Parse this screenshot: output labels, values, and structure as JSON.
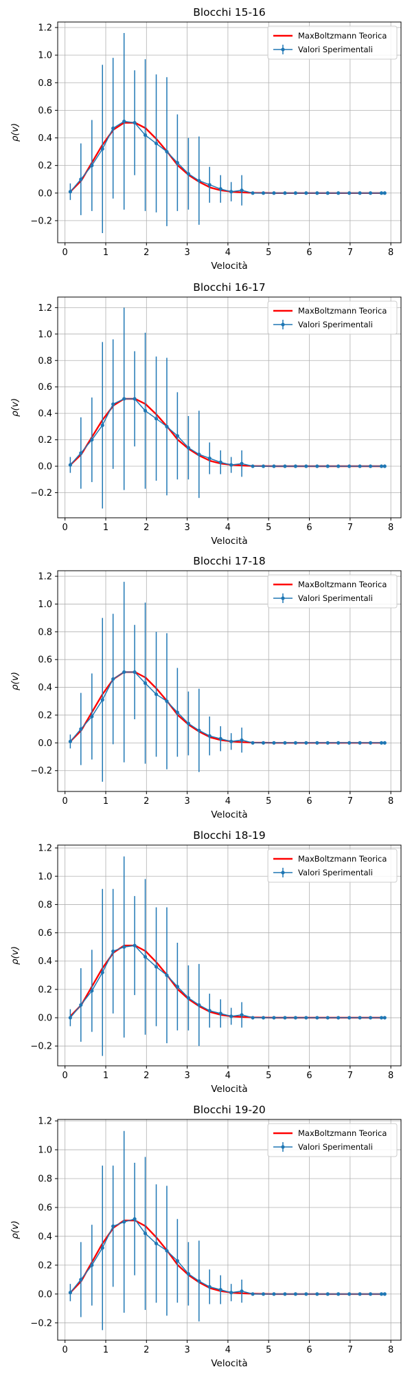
{
  "chart_data": [
    {
      "type": "line",
      "title": "Blocchi 15-16",
      "xlabel": "Velocità",
      "ylabel": "ρ(v)",
      "xlim": [
        -0.18,
        8.25
      ],
      "ylim": [
        -0.36,
        1.24
      ],
      "xticks": [
        0,
        1,
        2,
        3,
        4,
        5,
        6,
        7,
        8
      ],
      "yticks": [
        -0.2,
        0.0,
        0.2,
        0.4,
        0.6,
        0.8,
        1.0,
        1.2
      ],
      "xtick_labels": [
        "0",
        "1",
        "2",
        "3",
        "4",
        "5",
        "6",
        "7",
        "8"
      ],
      "ytick_labels": [
        "−0.2",
        "0.0",
        "0.2",
        "0.4",
        "0.6",
        "0.8",
        "1.0",
        "1.2"
      ],
      "grid": true,
      "legend_position": "top-right",
      "series": [
        {
          "name": "MaxBoltzmann Teorica",
          "color": "#ff0000",
          "kind": "line",
          "x": [
            0.13,
            0.4,
            0.66,
            0.92,
            1.19,
            1.45,
            1.72,
            1.98,
            2.25,
            2.51,
            2.77,
            3.04,
            3.3,
            3.57,
            3.83,
            4.1,
            4.36,
            4.62,
            4.89,
            5.15,
            5.42,
            5.68,
            5.95,
            6.21,
            6.47,
            6.74,
            7.0,
            7.27,
            7.53,
            7.8,
            7.85
          ],
          "y": [
            0.01,
            0.09,
            0.22,
            0.35,
            0.46,
            0.51,
            0.51,
            0.47,
            0.39,
            0.3,
            0.2,
            0.13,
            0.08,
            0.04,
            0.02,
            0.01,
            0.005,
            0.002,
            0.001,
            0,
            0,
            0,
            0,
            0,
            0,
            0,
            0,
            0,
            0,
            0,
            0
          ]
        },
        {
          "name": "Valori Sperimentali",
          "color": "#1f77b4",
          "kind": "errorbar",
          "x": [
            0.13,
            0.39,
            0.66,
            0.92,
            1.18,
            1.45,
            1.71,
            1.97,
            2.24,
            2.5,
            2.76,
            3.03,
            3.29,
            3.55,
            3.82,
            4.08,
            4.34,
            4.61,
            4.87,
            5.13,
            5.4,
            5.66,
            5.92,
            6.19,
            6.45,
            6.71,
            6.98,
            7.24,
            7.5,
            7.77,
            7.85
          ],
          "y": [
            0.01,
            0.1,
            0.2,
            0.32,
            0.47,
            0.52,
            0.51,
            0.42,
            0.36,
            0.3,
            0.22,
            0.14,
            0.09,
            0.06,
            0.03,
            0.01,
            0.02,
            0,
            0,
            0,
            0,
            0,
            0,
            0,
            0,
            0,
            0,
            0,
            0,
            0,
            0
          ],
          "err": [
            0.06,
            0.26,
            0.33,
            0.61,
            0.51,
            0.64,
            0.38,
            0.55,
            0.5,
            0.54,
            0.35,
            0.26,
            0.32,
            0.13,
            0.1,
            0.07,
            0.11,
            0,
            0,
            0,
            0,
            0,
            0,
            0,
            0,
            0,
            0,
            0,
            0,
            0,
            0
          ]
        }
      ]
    },
    {
      "type": "line",
      "title": "Blocchi 16-17",
      "xlabel": "Velocità",
      "ylabel": "ρ(v)",
      "xlim": [
        -0.18,
        8.25
      ],
      "ylim": [
        -0.39,
        1.28
      ],
      "xticks": [
        0,
        1,
        2,
        3,
        4,
        5,
        6,
        7,
        8
      ],
      "yticks": [
        -0.2,
        0.0,
        0.2,
        0.4,
        0.6,
        0.8,
        1.0,
        1.2
      ],
      "xtick_labels": [
        "0",
        "1",
        "2",
        "3",
        "4",
        "5",
        "6",
        "7",
        "8"
      ],
      "ytick_labels": [
        "−0.2",
        "0.0",
        "0.2",
        "0.4",
        "0.6",
        "0.8",
        "1.0",
        "1.2"
      ],
      "grid": true,
      "legend_position": "top-right",
      "series": [
        {
          "name": "MaxBoltzmann Teorica",
          "color": "#ff0000",
          "kind": "line",
          "x": [
            0.13,
            0.4,
            0.66,
            0.92,
            1.19,
            1.45,
            1.72,
            1.98,
            2.25,
            2.51,
            2.77,
            3.04,
            3.3,
            3.57,
            3.83,
            4.1,
            4.36,
            4.62,
            4.89,
            5.15,
            5.42,
            5.68,
            5.95,
            6.21,
            6.47,
            6.74,
            7.0,
            7.27,
            7.53,
            7.8,
            7.85
          ],
          "y": [
            0.01,
            0.09,
            0.22,
            0.35,
            0.46,
            0.51,
            0.51,
            0.47,
            0.39,
            0.3,
            0.2,
            0.13,
            0.08,
            0.04,
            0.02,
            0.01,
            0.005,
            0.002,
            0.001,
            0,
            0,
            0,
            0,
            0,
            0,
            0,
            0,
            0,
            0,
            0,
            0
          ]
        },
        {
          "name": "Valori Sperimentali",
          "color": "#1f77b4",
          "kind": "errorbar",
          "x": [
            0.13,
            0.39,
            0.66,
            0.92,
            1.18,
            1.45,
            1.71,
            1.97,
            2.24,
            2.5,
            2.76,
            3.03,
            3.29,
            3.55,
            3.82,
            4.08,
            4.34,
            4.61,
            4.87,
            5.13,
            5.4,
            5.66,
            5.92,
            6.19,
            6.45,
            6.71,
            6.98,
            7.24,
            7.5,
            7.77,
            7.85
          ],
          "y": [
            0.01,
            0.1,
            0.2,
            0.31,
            0.47,
            0.51,
            0.51,
            0.42,
            0.36,
            0.3,
            0.23,
            0.14,
            0.09,
            0.06,
            0.03,
            0.01,
            0.02,
            0,
            0,
            0,
            0,
            0,
            0,
            0,
            0,
            0,
            0,
            0,
            0,
            0,
            0
          ],
          "err": [
            0.06,
            0.27,
            0.32,
            0.63,
            0.49,
            0.69,
            0.36,
            0.59,
            0.47,
            0.52,
            0.33,
            0.24,
            0.33,
            0.12,
            0.09,
            0.06,
            0.1,
            0,
            0,
            0,
            0,
            0,
            0,
            0,
            0,
            0,
            0,
            0,
            0,
            0,
            0
          ]
        }
      ]
    },
    {
      "type": "line",
      "title": "Blocchi 17-18",
      "xlabel": "Velocità",
      "ylabel": "ρ(v)",
      "xlim": [
        -0.18,
        8.25
      ],
      "ylim": [
        -0.35,
        1.24
      ],
      "xticks": [
        0,
        1,
        2,
        3,
        4,
        5,
        6,
        7,
        8
      ],
      "yticks": [
        -0.2,
        0.0,
        0.2,
        0.4,
        0.6,
        0.8,
        1.0,
        1.2
      ],
      "xtick_labels": [
        "0",
        "1",
        "2",
        "3",
        "4",
        "5",
        "6",
        "7",
        "8"
      ],
      "ytick_labels": [
        "−0.2",
        "0.0",
        "0.2",
        "0.4",
        "0.6",
        "0.8",
        "1.0",
        "1.2"
      ],
      "grid": true,
      "legend_position": "top-right",
      "series": [
        {
          "name": "MaxBoltzmann Teorica",
          "color": "#ff0000",
          "kind": "line",
          "x": [
            0.13,
            0.4,
            0.66,
            0.92,
            1.19,
            1.45,
            1.72,
            1.98,
            2.25,
            2.51,
            2.77,
            3.04,
            3.3,
            3.57,
            3.83,
            4.1,
            4.36,
            4.62,
            4.89,
            5.15,
            5.42,
            5.68,
            5.95,
            6.21,
            6.47,
            6.74,
            7.0,
            7.27,
            7.53,
            7.8,
            7.85
          ],
          "y": [
            0.01,
            0.09,
            0.22,
            0.35,
            0.46,
            0.51,
            0.51,
            0.47,
            0.39,
            0.3,
            0.2,
            0.13,
            0.08,
            0.04,
            0.02,
            0.01,
            0.005,
            0.002,
            0.001,
            0,
            0,
            0,
            0,
            0,
            0,
            0,
            0,
            0,
            0,
            0,
            0
          ]
        },
        {
          "name": "Valori Sperimentali",
          "color": "#1f77b4",
          "kind": "errorbar",
          "x": [
            0.13,
            0.39,
            0.66,
            0.92,
            1.18,
            1.45,
            1.71,
            1.97,
            2.24,
            2.5,
            2.76,
            3.03,
            3.29,
            3.55,
            3.82,
            4.08,
            4.34,
            4.61,
            4.87,
            5.13,
            5.4,
            5.66,
            5.92,
            6.19,
            6.45,
            6.71,
            6.98,
            7.24,
            7.5,
            7.77,
            7.85
          ],
          "y": [
            0.01,
            0.1,
            0.19,
            0.31,
            0.46,
            0.51,
            0.51,
            0.43,
            0.35,
            0.3,
            0.22,
            0.14,
            0.09,
            0.05,
            0.03,
            0.01,
            0.02,
            0,
            0,
            0,
            0,
            0,
            0,
            0,
            0,
            0,
            0,
            0,
            0,
            0,
            0
          ],
          "err": [
            0.05,
            0.26,
            0.31,
            0.59,
            0.47,
            0.65,
            0.34,
            0.58,
            0.45,
            0.49,
            0.32,
            0.23,
            0.3,
            0.14,
            0.09,
            0.06,
            0.09,
            0,
            0,
            0,
            0,
            0,
            0,
            0,
            0,
            0,
            0,
            0,
            0,
            0,
            0
          ]
        }
      ]
    },
    {
      "type": "line",
      "title": "Blocchi 18-19",
      "xlabel": "Velocità",
      "ylabel": "ρ(v)",
      "xlim": [
        -0.18,
        8.25
      ],
      "ylim": [
        -0.34,
        1.22
      ],
      "xticks": [
        0,
        1,
        2,
        3,
        4,
        5,
        6,
        7,
        8
      ],
      "yticks": [
        -0.2,
        0.0,
        0.2,
        0.4,
        0.6,
        0.8,
        1.0,
        1.2
      ],
      "xtick_labels": [
        "0",
        "1",
        "2",
        "3",
        "4",
        "5",
        "6",
        "7",
        "8"
      ],
      "ytick_labels": [
        "−0.2",
        "0.0",
        "0.2",
        "0.4",
        "0.6",
        "0.8",
        "1.0",
        "1.2"
      ],
      "grid": true,
      "legend_position": "top-right",
      "series": [
        {
          "name": "MaxBoltzmann Teorica",
          "color": "#ff0000",
          "kind": "line",
          "x": [
            0.13,
            0.4,
            0.66,
            0.92,
            1.19,
            1.45,
            1.72,
            1.98,
            2.25,
            2.51,
            2.77,
            3.04,
            3.3,
            3.57,
            3.83,
            4.1,
            4.36,
            4.62,
            4.89,
            5.15,
            5.42,
            5.68,
            5.95,
            6.21,
            6.47,
            6.74,
            7.0,
            7.27,
            7.53,
            7.8,
            7.85
          ],
          "y": [
            0.01,
            0.09,
            0.22,
            0.35,
            0.46,
            0.51,
            0.51,
            0.47,
            0.39,
            0.3,
            0.2,
            0.13,
            0.08,
            0.04,
            0.02,
            0.01,
            0.005,
            0.002,
            0.001,
            0,
            0,
            0,
            0,
            0,
            0,
            0,
            0,
            0,
            0,
            0,
            0
          ]
        },
        {
          "name": "Valori Sperimentali",
          "color": "#1f77b4",
          "kind": "errorbar",
          "x": [
            0.13,
            0.39,
            0.66,
            0.92,
            1.18,
            1.45,
            1.71,
            1.97,
            2.24,
            2.5,
            2.76,
            3.03,
            3.29,
            3.55,
            3.82,
            4.08,
            4.34,
            4.61,
            4.87,
            5.13,
            5.4,
            5.66,
            5.92,
            6.19,
            6.45,
            6.71,
            6.98,
            7.24,
            7.5,
            7.77,
            7.85
          ],
          "y": [
            0.0,
            0.09,
            0.19,
            0.32,
            0.47,
            0.5,
            0.51,
            0.43,
            0.36,
            0.3,
            0.22,
            0.14,
            0.09,
            0.05,
            0.03,
            0.01,
            0.02,
            0,
            0,
            0,
            0,
            0,
            0,
            0,
            0,
            0,
            0,
            0,
            0,
            0,
            0
          ],
          "err": [
            0.06,
            0.26,
            0.29,
            0.59,
            0.44,
            0.64,
            0.35,
            0.55,
            0.42,
            0.48,
            0.31,
            0.23,
            0.29,
            0.12,
            0.1,
            0.06,
            0.09,
            0,
            0,
            0,
            0,
            0,
            0,
            0,
            0,
            0,
            0,
            0,
            0,
            0,
            0
          ]
        }
      ]
    },
    {
      "type": "line",
      "title": "Blocchi 19-20",
      "xlabel": "Velocità",
      "ylabel": "ρ(v)",
      "xlim": [
        -0.18,
        8.25
      ],
      "ylim": [
        -0.32,
        1.21
      ],
      "xticks": [
        0,
        1,
        2,
        3,
        4,
        5,
        6,
        7,
        8
      ],
      "yticks": [
        -0.2,
        0.0,
        0.2,
        0.4,
        0.6,
        0.8,
        1.0,
        1.2
      ],
      "xtick_labels": [
        "0",
        "1",
        "2",
        "3",
        "4",
        "5",
        "6",
        "7",
        "8"
      ],
      "ytick_labels": [
        "−0.2",
        "0.0",
        "0.2",
        "0.4",
        "0.6",
        "0.8",
        "1.0",
        "1.2"
      ],
      "grid": true,
      "legend_position": "top-right",
      "series": [
        {
          "name": "MaxBoltzmann Teorica",
          "color": "#ff0000",
          "kind": "line",
          "x": [
            0.13,
            0.4,
            0.66,
            0.92,
            1.19,
            1.45,
            1.72,
            1.98,
            2.25,
            2.51,
            2.77,
            3.04,
            3.3,
            3.57,
            3.83,
            4.1,
            4.36,
            4.62,
            4.89,
            5.15,
            5.42,
            5.68,
            5.95,
            6.21,
            6.47,
            6.74,
            7.0,
            7.27,
            7.53,
            7.8,
            7.85
          ],
          "y": [
            0.01,
            0.09,
            0.22,
            0.35,
            0.46,
            0.51,
            0.51,
            0.47,
            0.39,
            0.3,
            0.2,
            0.13,
            0.08,
            0.04,
            0.02,
            0.01,
            0.005,
            0.002,
            0.001,
            0,
            0,
            0,
            0,
            0,
            0,
            0,
            0,
            0,
            0,
            0,
            0
          ]
        },
        {
          "name": "Valori Sperimentali",
          "color": "#1f77b4",
          "kind": "errorbar",
          "x": [
            0.13,
            0.39,
            0.66,
            0.92,
            1.18,
            1.45,
            1.71,
            1.97,
            2.24,
            2.5,
            2.76,
            3.03,
            3.29,
            3.55,
            3.82,
            4.08,
            4.34,
            4.61,
            4.87,
            5.13,
            5.4,
            5.66,
            5.92,
            6.19,
            6.45,
            6.71,
            6.98,
            7.24,
            7.5,
            7.77,
            7.85
          ],
          "y": [
            0.01,
            0.1,
            0.2,
            0.32,
            0.47,
            0.5,
            0.52,
            0.42,
            0.35,
            0.3,
            0.23,
            0.14,
            0.09,
            0.05,
            0.03,
            0.01,
            0.02,
            0,
            0,
            0,
            0,
            0,
            0,
            0,
            0,
            0,
            0,
            0,
            0,
            0,
            0
          ],
          "err": [
            0.06,
            0.26,
            0.28,
            0.57,
            0.42,
            0.63,
            0.39,
            0.53,
            0.41,
            0.45,
            0.29,
            0.22,
            0.28,
            0.12,
            0.1,
            0.06,
            0.08,
            0,
            0,
            0,
            0,
            0,
            0,
            0,
            0,
            0,
            0,
            0,
            0,
            0,
            0
          ]
        }
      ]
    }
  ]
}
